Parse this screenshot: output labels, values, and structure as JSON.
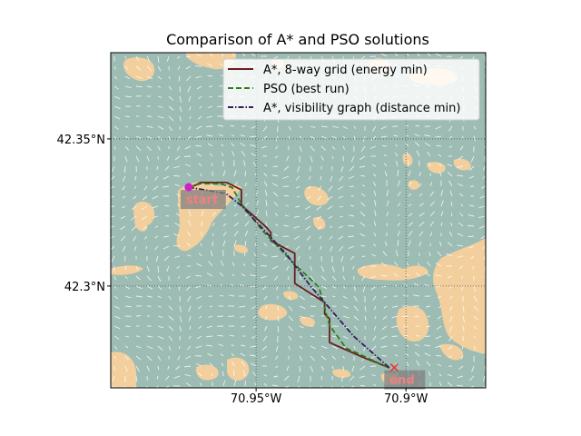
{
  "title": "Comparison of A* and PSO solutions",
  "colors": {
    "water": "#9dbcb4",
    "land": "#f2cf9d",
    "grid": "#555555",
    "start_marker": "#cc22cc",
    "end_marker": "#ee3333",
    "label_text": "#f08080",
    "label_box": "#808080"
  },
  "axes": {
    "x_ticks": [
      {
        "value": -70.95,
        "label": "70.95°W"
      },
      {
        "value": -70.9,
        "label": "70.9°W"
      }
    ],
    "y_ticks": [
      {
        "value": 42.35,
        "label": "42.35°N"
      },
      {
        "value": 42.3,
        "label": "42.3°N"
      }
    ],
    "x_range": [
      -70.9985,
      -70.8734
    ],
    "y_range": [
      42.2654,
      42.3793
    ],
    "grid": "dotted"
  },
  "legend": {
    "position": "top-right",
    "entries": [
      {
        "label": "A*, 8-way grid (energy min)",
        "color": "#6b1e1e",
        "style": "solid"
      },
      {
        "label": "PSO (best run)",
        "color": "#2e7d1a",
        "style": "dashed"
      },
      {
        "label": "A*, visibility graph (distance min)",
        "color": "#3a1a5c",
        "style": "dashdot"
      }
    ]
  },
  "markers": {
    "start": {
      "label": "start",
      "lon": -70.9725,
      "lat": 42.3336
    },
    "end": {
      "label": "end",
      "lon": -70.9039,
      "lat": 42.2723
    }
  },
  "chart_data": {
    "type": "line",
    "title": "Comparison of A* and PSO solutions",
    "xlabel": "",
    "ylabel": "",
    "grid": true,
    "legend": "top-right",
    "xlim": [
      -70.9985,
      -70.8734
    ],
    "ylim": [
      42.2654,
      42.3793
    ],
    "series": [
      {
        "name": "A*, 8-way grid (energy min)",
        "color": "#6b1e1e",
        "dash": "solid",
        "points": [
          [
            -70.9725,
            42.3336
          ],
          [
            -70.9704,
            42.3342
          ],
          [
            -70.9685,
            42.3352
          ],
          [
            -70.9598,
            42.3352
          ],
          [
            -70.9549,
            42.3327
          ],
          [
            -70.9549,
            42.3275
          ],
          [
            -70.95,
            42.3231
          ],
          [
            -70.9466,
            42.32
          ],
          [
            -70.9451,
            42.3182
          ],
          [
            -70.9451,
            42.3154
          ],
          [
            -70.9371,
            42.3111
          ],
          [
            -70.9371,
            42.3009
          ],
          [
            -70.9271,
            42.2944
          ],
          [
            -70.9271,
            42.2904
          ],
          [
            -70.9255,
            42.2889
          ],
          [
            -70.9255,
            42.2808
          ],
          [
            -70.9137,
            42.2755
          ],
          [
            -70.9105,
            42.2743
          ],
          [
            -70.9055,
            42.2722
          ]
        ]
      },
      {
        "name": "PSO (best run)",
        "color": "#2e7d1a",
        "dash": "dashed",
        "points": [
          [
            -70.9725,
            42.3336
          ],
          [
            -70.9685,
            42.3348
          ],
          [
            -70.962,
            42.3348
          ],
          [
            -70.958,
            42.3335
          ],
          [
            -70.955,
            42.3281
          ],
          [
            -70.948,
            42.319
          ],
          [
            -70.942,
            42.3126
          ],
          [
            -70.938,
            42.3083
          ],
          [
            -70.929,
            42.2996
          ],
          [
            -70.9255,
            42.2866
          ],
          [
            -70.92,
            42.2789
          ],
          [
            -70.9055,
            42.2722
          ]
        ]
      },
      {
        "name": "A*, visibility graph (distance min)",
        "color": "#3a1a5c",
        "dash": "dashdot",
        "points": [
          [
            -70.9725,
            42.3336
          ],
          [
            -70.96,
            42.3314
          ],
          [
            -70.9549,
            42.3273
          ],
          [
            -70.94,
            42.311
          ],
          [
            -70.932,
            42.3002
          ],
          [
            -70.9175,
            42.283
          ],
          [
            -70.9055,
            42.2722
          ]
        ]
      }
    ]
  }
}
